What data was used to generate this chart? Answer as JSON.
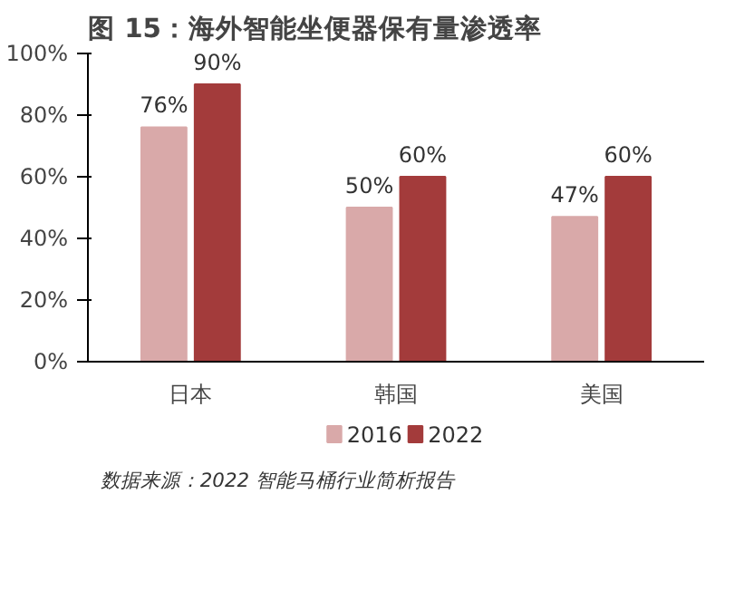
{
  "chart_data": {
    "type": "bar",
    "title": "图 15：海外智能坐便器保有量渗透率",
    "categories": [
      "日本",
      "韩国",
      "美国"
    ],
    "series": [
      {
        "name": "2016",
        "color": "#d9a9a9",
        "values": [
          76,
          50,
          47
        ],
        "value_labels": [
          "76%",
          "50%",
          "47%"
        ]
      },
      {
        "name": "2022",
        "color": "#a33b3b",
        "values": [
          90,
          60,
          60
        ],
        "value_labels": [
          "90%",
          "60%",
          "60%"
        ]
      }
    ],
    "ylim": [
      0,
      100
    ],
    "yticks": [
      {
        "value": 0,
        "label": "0%"
      },
      {
        "value": 20,
        "label": "20%"
      },
      {
        "value": 40,
        "label": "40%"
      },
      {
        "value": 60,
        "label": "60%"
      },
      {
        "value": 80,
        "label": "80%"
      },
      {
        "value": 100,
        "label": "100%"
      }
    ],
    "grid": false,
    "legend": "bottom",
    "annotations": [
      "数据来源：2022 智能马桶行业简析报告"
    ]
  }
}
